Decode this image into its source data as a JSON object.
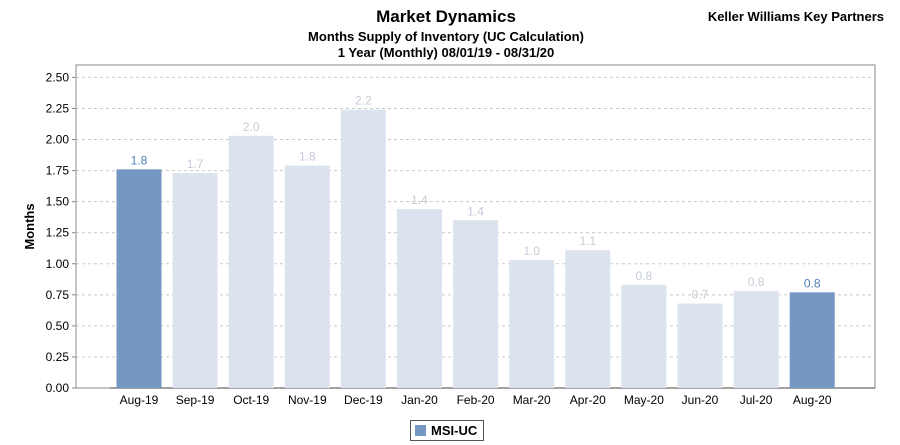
{
  "chart_data": {
    "type": "bar",
    "title": "Market Dynamics",
    "subtitle_lines": [
      "Months Supply of Inventory (UC Calculation)",
      "1 Year (Monthly) 08/01/19 - 08/31/20"
    ],
    "ylabel": "Months",
    "ylim": [
      0,
      2.6
    ],
    "yticks": [
      0.0,
      0.25,
      0.5,
      0.75,
      1.0,
      1.25,
      1.5,
      1.75,
      2.0,
      2.25,
      2.5
    ],
    "ytick_labels": [
      "0.00",
      "0.25",
      "0.50",
      "0.75",
      "1.00",
      "1.25",
      "1.50",
      "1.75",
      "2.00",
      "2.25",
      "2.50"
    ],
    "grid": true,
    "legend_position": "bottom-center",
    "categories": [
      "Aug-19",
      "Sep-19",
      "Oct-19",
      "Nov-19",
      "Dec-19",
      "Jan-20",
      "Feb-20",
      "Mar-20",
      "Apr-20",
      "May-20",
      "Jun-20",
      "Jul-20",
      "Aug-20"
    ],
    "series": [
      {
        "name": "MSI-UC",
        "values": [
          1.76,
          1.73,
          2.03,
          1.79,
          2.24,
          1.44,
          1.35,
          1.03,
          1.11,
          0.83,
          0.68,
          0.78,
          0.77
        ],
        "data_labels": [
          "1.8",
          "1.7",
          "2.0",
          "1.8",
          "2.2",
          "1.4",
          "1.4",
          "1.0",
          "1.1",
          "0.8",
          "0.7",
          "0.8",
          "0.8"
        ],
        "highlighted": [
          true,
          false,
          false,
          false,
          false,
          false,
          false,
          false,
          false,
          false,
          false,
          false,
          true
        ]
      }
    ],
    "colors": {
      "highlight_bar": "#7597c3",
      "muted_bar": "#dce3ee",
      "highlight_label": "#4f7db8",
      "muted_label": "#c5ccd7",
      "grid": "#c8c8c8",
      "axis": "#888888"
    }
  },
  "brand": "Keller Williams Key Partners",
  "legend": {
    "label": "MSI-UC",
    "color": "#7597c3"
  }
}
